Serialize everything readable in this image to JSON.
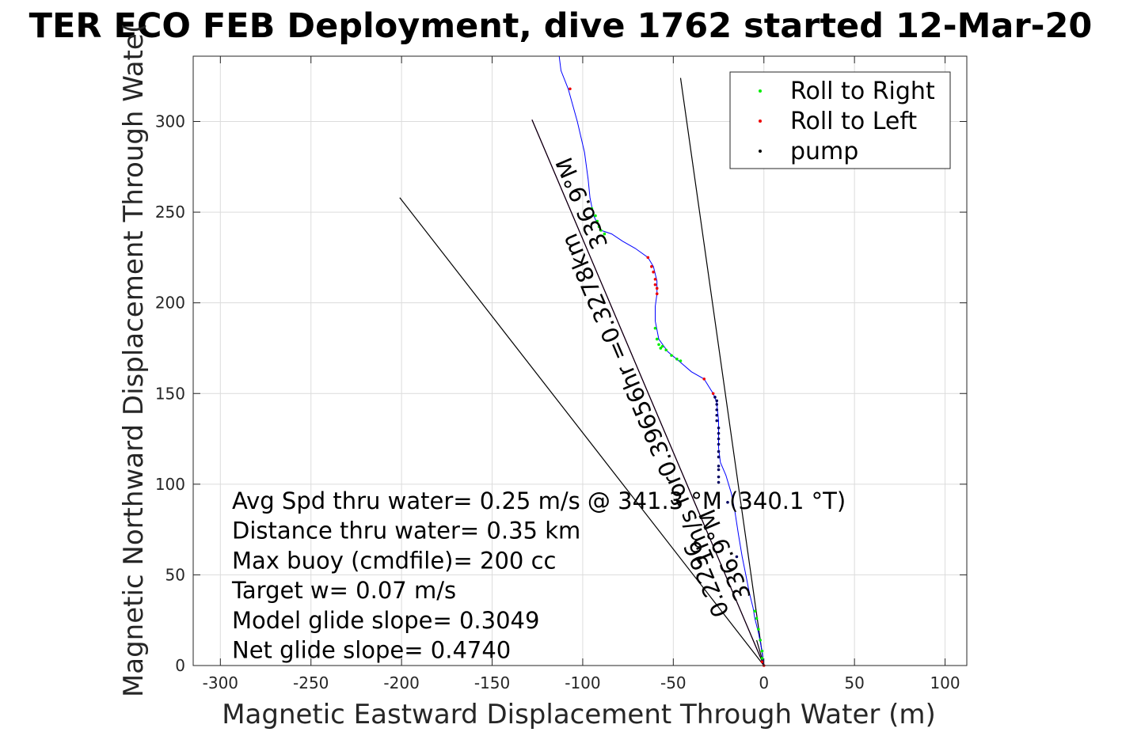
{
  "chart_data": {
    "type": "scatter",
    "title": "TER ECO FEB Deployment, dive 1762 started 12-Mar-20",
    "xlabel": "Magnetic Eastward Displacement Through Water (m)",
    "ylabel": "Magnetic Northward Displacement Through Wate(",
    "xlim": [
      -315,
      112
    ],
    "ylim": [
      0,
      336
    ],
    "xticks": [
      -300,
      -250,
      -200,
      -150,
      -100,
      -50,
      0,
      50,
      100
    ],
    "yticks": [
      0,
      50,
      100,
      150,
      200,
      250,
      300
    ],
    "xticklabels": [
      "-300",
      "-250",
      "-200",
      "-150",
      "-100",
      "-50",
      "0",
      "50",
      "100"
    ],
    "yticklabels": [
      "0",
      "50",
      "100",
      "150",
      "200",
      "250",
      "300"
    ],
    "grid": true,
    "legend_position": "top-right",
    "legend": [
      {
        "label": "Roll to Right",
        "color": "#00ee00"
      },
      {
        "label": "Roll to Left",
        "color": "#ee0000"
      },
      {
        "label": "pump",
        "color": "#000000"
      }
    ],
    "track": {
      "color": "#0000ff",
      "points": [
        [
          0,
          0
        ],
        [
          -1,
          8
        ],
        [
          -3,
          18
        ],
        [
          -5,
          26
        ],
        [
          -6,
          32
        ],
        [
          -8,
          40
        ],
        [
          -10,
          50
        ],
        [
          -12,
          60
        ],
        [
          -14,
          72
        ],
        [
          -16,
          85
        ],
        [
          -18,
          95
        ],
        [
          -21,
          105
        ],
        [
          -24,
          112
        ],
        [
          -25,
          120
        ],
        [
          -25,
          135
        ],
        [
          -26,
          145
        ],
        [
          -28,
          150
        ],
        [
          -33,
          158
        ],
        [
          -40,
          162
        ],
        [
          -47,
          168
        ],
        [
          -53,
          173
        ],
        [
          -58,
          180
        ],
        [
          -60,
          190
        ],
        [
          -60,
          198
        ],
        [
          -59,
          205
        ],
        [
          -59,
          212
        ],
        [
          -61,
          220
        ],
        [
          -64,
          225
        ],
        [
          -71,
          230
        ],
        [
          -78,
          234
        ],
        [
          -84,
          238
        ],
        [
          -90,
          240
        ],
        [
          -94,
          248
        ],
        [
          -96,
          258
        ],
        [
          -97,
          268
        ],
        [
          -99,
          283
        ],
        [
          -103,
          300
        ],
        [
          -108,
          318
        ],
        [
          -112,
          328
        ],
        [
          -113,
          336
        ]
      ]
    },
    "roll_right": [
      [
        -1,
        8
      ],
      [
        -2,
        14
      ],
      [
        -3,
        20
      ],
      [
        -4,
        26
      ],
      [
        -5,
        30
      ],
      [
        -1,
        4
      ],
      [
        -59,
        180
      ],
      [
        -60,
        186
      ],
      [
        -59,
        180
      ],
      [
        -56,
        176
      ],
      [
        -54,
        174
      ],
      [
        -51,
        171
      ],
      [
        -48,
        169
      ],
      [
        -46,
        168
      ],
      [
        -58,
        177
      ],
      [
        -57,
        175
      ],
      [
        -90,
        240
      ],
      [
        -91,
        242
      ],
      [
        -92,
        245
      ],
      [
        -93,
        248
      ],
      [
        -95,
        252
      ],
      [
        -88,
        238
      ]
    ],
    "roll_left": [
      [
        0,
        0
      ],
      [
        -1,
        2
      ],
      [
        -59,
        205
      ],
      [
        -59,
        208
      ],
      [
        -60,
        210
      ],
      [
        -60,
        213
      ],
      [
        -61,
        217
      ],
      [
        -62,
        220
      ],
      [
        -64,
        225
      ],
      [
        -33,
        158
      ],
      [
        -28,
        150
      ],
      [
        -107,
        318
      ]
    ],
    "pump": [
      [
        -25,
        110
      ],
      [
        -25,
        115
      ],
      [
        -25,
        118
      ],
      [
        -25,
        122
      ],
      [
        -25,
        125
      ],
      [
        -25,
        128
      ],
      [
        -25,
        131
      ],
      [
        -26,
        135
      ],
      [
        -26,
        138
      ],
      [
        -26,
        141
      ],
      [
        -26,
        144
      ],
      [
        -26,
        146
      ],
      [
        -27,
        148
      ],
      [
        -25,
        108
      ],
      [
        -25,
        104
      ],
      [
        -25,
        101
      ],
      [
        -15,
        60
      ],
      [
        -20,
        90
      ]
    ],
    "reference_lines": [
      {
        "x": [
          0,
          -201
        ],
        "y": [
          0,
          258
        ],
        "color": "#000000"
      },
      {
        "x": [
          0,
          -46
        ],
        "y": [
          0,
          324
        ],
        "color": "#000000"
      },
      {
        "x": [
          0,
          -4
        ],
        "y": [
          0,
          14
        ],
        "color": "#000000"
      },
      {
        "x": [
          0,
          -128
        ],
        "y": [
          0,
          301
        ],
        "color": "#cc00cc"
      },
      {
        "x": [
          0,
          -128
        ],
        "y": [
          0,
          301
        ],
        "color": "#000000"
      }
    ],
    "rotated_labels": [
      {
        "text": "0.2296",
        "x": -19,
        "y": 29,
        "angle": 67
      },
      {
        "text": "1m/s for0.39656hr =0.3278km",
        "x": -27,
        "y": 58,
        "angle": 67
      },
      {
        "text": "336.9°M",
        "x": -7,
        "y": 38,
        "angle": 67
      },
      {
        "text": "336.9°M",
        "x": -86,
        "y": 232,
        "angle": 67
      }
    ],
    "annotations": [
      "Avg Spd thru water=  0.25 m/s @ 341.3 °M (340.1 °T)",
      "Distance thru water=  0.35 km",
      "Max buoy (cmdfile)= 200 cc",
      "Target w= 0.07 m/s",
      "Model glide slope= 0.3049",
      "Net glide slope= 0.4740"
    ]
  }
}
